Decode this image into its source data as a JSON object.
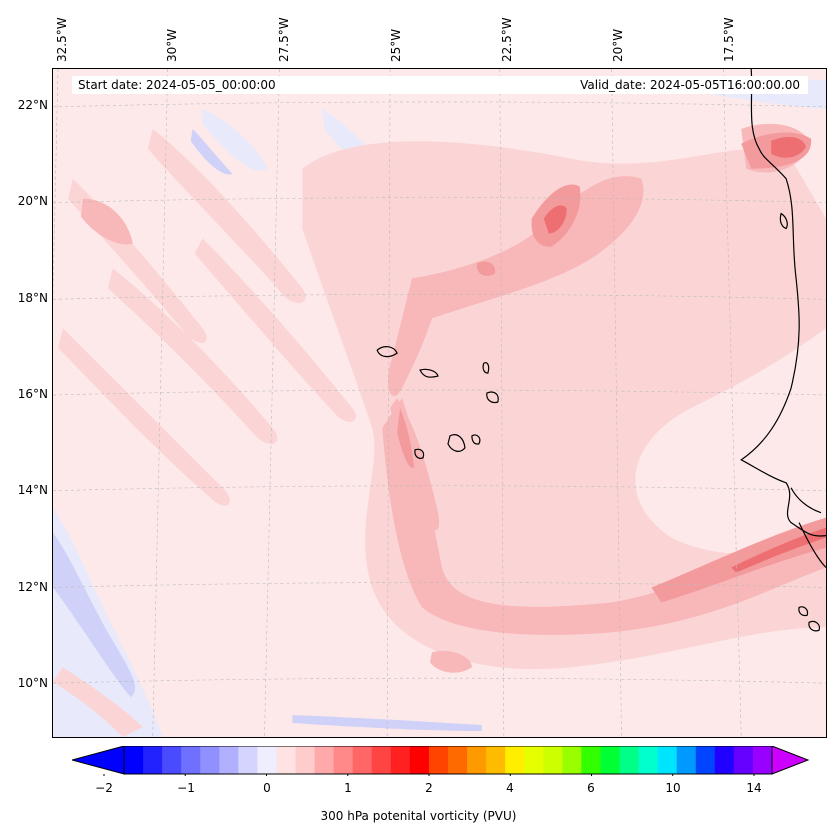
{
  "map": {
    "info": {
      "start_date": "Start date: 2024-05-05_00:00:00",
      "valid_date": "Valid_date: 2024-05-05T16:00:00.00"
    },
    "longitude_labels": [
      "32.5°W",
      "30°W",
      "27.5°W",
      "25°W",
      "22.5°W",
      "20°W",
      "17.5°W"
    ],
    "latitude_labels": [
      "22°N",
      "20°N",
      "18°N",
      "16°N",
      "14°N",
      "12°N",
      "10°N"
    ],
    "colors": {
      "base": "#fde9ea",
      "light_pink": "#fbd5d6",
      "pink": "#f8b7b9",
      "salmon": "#f39a9c",
      "red": "#ee6f72",
      "light_blue": "#e8e9fb",
      "blue": "#cfd1f8",
      "coast": "#000000"
    }
  },
  "colorbar": {
    "title": "300 hPa potenital vorticity (PVU)",
    "tick_labels": [
      "−2",
      "−1",
      "0",
      "1",
      "2",
      "4",
      "6",
      "10",
      "14"
    ],
    "swatches": [
      "#0000ff",
      "#2222ff",
      "#4a4aff",
      "#7070ff",
      "#9090ff",
      "#b0b0ff",
      "#d4d4ff",
      "#eeeeff",
      "#ffe2e2",
      "#ffcccc",
      "#ffaaaa",
      "#ff8888",
      "#ff6666",
      "#ff4444",
      "#ff2020",
      "#ff0000",
      "#ff4400",
      "#ff6a00",
      "#ff9900",
      "#ffbb00",
      "#ffee00",
      "#e6ff00",
      "#ccff00",
      "#99ff00",
      "#33ff00",
      "#00ff33",
      "#00ff88",
      "#00ffcc",
      "#00e5ff",
      "#0099ff",
      "#0044ff",
      "#2200ff",
      "#6600ff",
      "#9900ff"
    ],
    "extend_colors": {
      "min": "#0000ff",
      "max": "#cc00ff"
    }
  }
}
